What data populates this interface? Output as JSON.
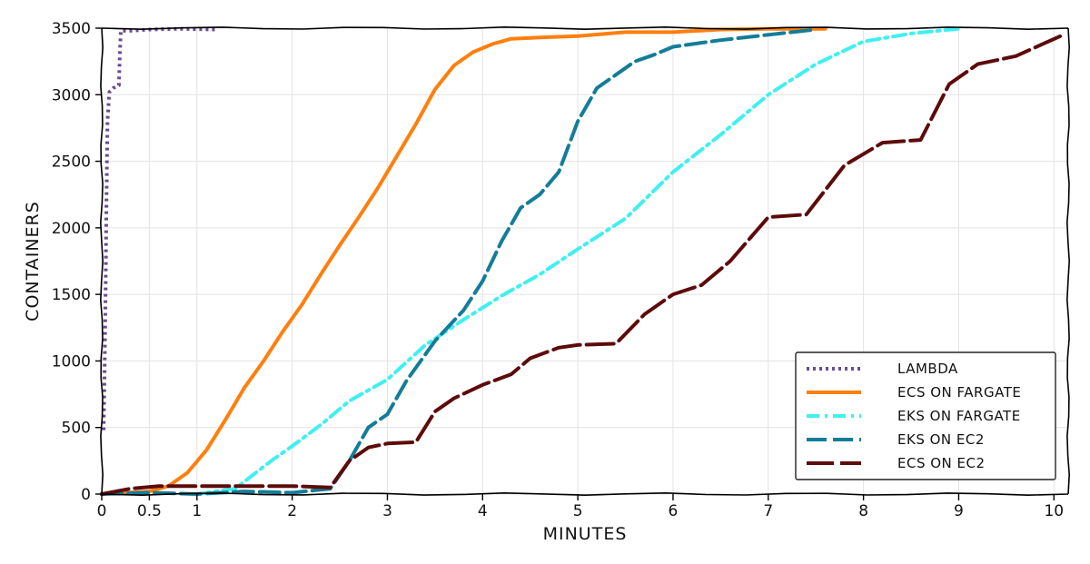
{
  "chart_data": {
    "type": "line",
    "xlabel": "MINUTES",
    "ylabel": "CONTAINERS",
    "xlim": [
      0,
      10.15
    ],
    "ylim": [
      0,
      3500
    ],
    "x_ticks": [
      0,
      0.5,
      1,
      2,
      3,
      4,
      5,
      6,
      7,
      8,
      9,
      10
    ],
    "x_tick_labels": [
      "0",
      "0.5",
      "1",
      "2",
      "3",
      "4",
      "5",
      "6",
      "7",
      "8",
      "9",
      "10"
    ],
    "y_ticks": [
      0,
      500,
      1000,
      1500,
      2000,
      2500,
      3000,
      3500
    ],
    "y_tick_labels": [
      "0",
      "500",
      "1000",
      "1500",
      "2000",
      "2500",
      "3000",
      "3500"
    ],
    "grid": true,
    "legend_position": "bottom-right",
    "series": [
      {
        "name": "LAMBDA",
        "color": "#6a4c93",
        "dash": "dotted",
        "x": [
          0.02,
          0.03,
          0.04,
          0.05,
          0.06,
          0.08,
          0.12,
          0.18,
          0.19,
          0.2,
          0.25,
          0.3,
          0.5,
          0.8,
          1.2
        ],
        "y": [
          480,
          900,
          1500,
          2200,
          2800,
          3020,
          3050,
          3070,
          3300,
          3480,
          3480,
          3480,
          3490,
          3495,
          3490
        ]
      },
      {
        "name": "ECS ON FARGATE",
        "color": "#ff7f0e",
        "dash": "solid",
        "x": [
          0,
          0.5,
          0.7,
          0.9,
          1.1,
          1.3,
          1.5,
          1.7,
          1.9,
          2.1,
          2.3,
          2.5,
          2.7,
          2.9,
          3.1,
          3.3,
          3.5,
          3.7,
          3.9,
          4.1,
          4.3,
          4.6,
          5.0,
          5.5,
          6.0,
          6.5,
          7.0,
          7.6
        ],
        "y": [
          0,
          20,
          60,
          160,
          330,
          560,
          800,
          1000,
          1220,
          1420,
          1650,
          1870,
          2080,
          2300,
          2540,
          2780,
          3040,
          3220,
          3320,
          3380,
          3420,
          3430,
          3440,
          3470,
          3470,
          3490,
          3495,
          3495
        ]
      },
      {
        "name": "EKS ON FARGATE",
        "color": "#40f0f0",
        "dash": "dashdot",
        "x": [
          1.0,
          1.4,
          1.6,
          1.8,
          2.0,
          2.3,
          2.6,
          3.0,
          3.4,
          3.8,
          4.2,
          4.6,
          5.0,
          5.5,
          6.0,
          6.5,
          7.0,
          7.5,
          8.0,
          8.5,
          9.0
        ],
        "y": [
          0,
          40,
          150,
          260,
          360,
          520,
          700,
          860,
          1120,
          1310,
          1490,
          1650,
          1840,
          2070,
          2420,
          2700,
          3000,
          3230,
          3400,
          3460,
          3495
        ]
      },
      {
        "name": "EKS ON EC2",
        "color": "#137d98",
        "dash": "dashed",
        "x": [
          0,
          0.5,
          1.0,
          1.5,
          2.0,
          2.4,
          2.6,
          2.8,
          3.0,
          3.2,
          3.5,
          3.8,
          4.0,
          4.2,
          4.4,
          4.6,
          4.8,
          5.0,
          5.2,
          5.4,
          5.6,
          5.8,
          6.0,
          6.5,
          7.0,
          7.5
        ],
        "y": [
          0,
          10,
          0,
          20,
          10,
          40,
          250,
          500,
          600,
          850,
          1150,
          1380,
          1600,
          1900,
          2150,
          2250,
          2420,
          2800,
          3050,
          3150,
          3250,
          3300,
          3360,
          3410,
          3450,
          3490
        ]
      },
      {
        "name": "ECS ON EC2",
        "color": "#5e0a0a",
        "dash": "longdash",
        "x": [
          0,
          0.3,
          0.6,
          1.0,
          1.5,
          2.0,
          2.4,
          2.6,
          2.8,
          3.0,
          3.3,
          3.5,
          3.7,
          4.0,
          4.3,
          4.5,
          4.8,
          5.0,
          5.4,
          5.7,
          6.0,
          6.3,
          6.6,
          7.0,
          7.4,
          7.8,
          8.2,
          8.6,
          8.9,
          9.2,
          9.6,
          10.1
        ],
        "y": [
          0,
          40,
          60,
          60,
          60,
          60,
          50,
          250,
          350,
          380,
          390,
          620,
          720,
          820,
          900,
          1020,
          1100,
          1120,
          1130,
          1350,
          1500,
          1570,
          1750,
          2080,
          2100,
          2470,
          2640,
          2660,
          3080,
          3230,
          3290,
          3450
        ]
      }
    ]
  }
}
